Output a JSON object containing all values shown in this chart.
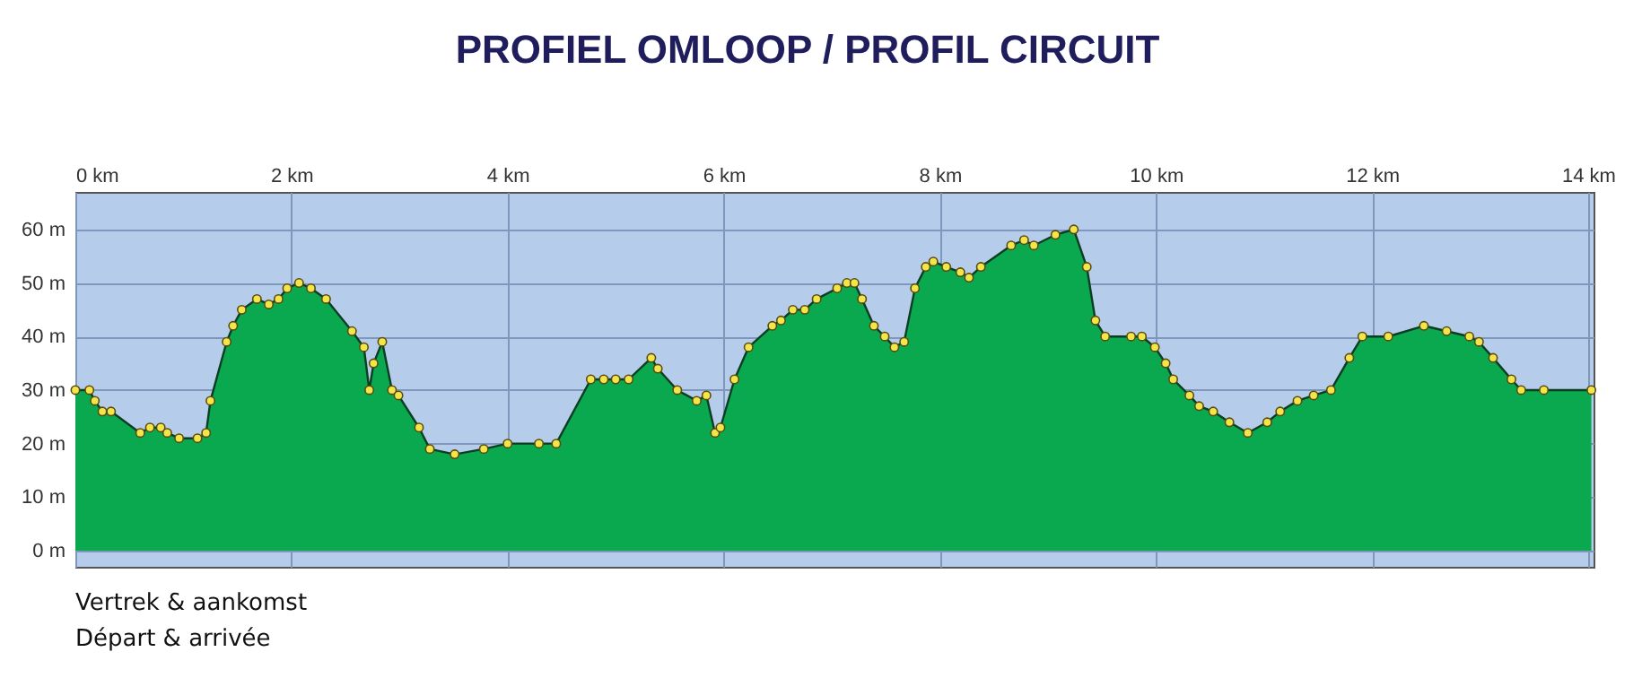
{
  "chart_data": {
    "type": "area",
    "title": "PROFIEL OMLOOP / PROFIL CIRCUIT",
    "annotations": [
      "Vertrek & aankomst",
      "Départ & arrivée"
    ],
    "x": [
      0,
      0.13,
      0.18,
      0.25,
      0.33,
      0.6,
      0.69,
      0.79,
      0.85,
      0.96,
      1.13,
      1.21,
      1.25,
      1.4,
      1.46,
      1.54,
      1.68,
      1.79,
      1.88,
      1.96,
      2.07,
      2.18,
      2.32,
      2.56,
      2.67,
      2.72,
      2.76,
      2.84,
      2.93,
      2.99,
      3.18,
      3.28,
      3.51,
      3.78,
      4.0,
      4.29,
      4.45,
      4.77,
      4.89,
      5.0,
      5.12,
      5.33,
      5.39,
      5.57,
      5.75,
      5.84,
      5.92,
      5.97,
      6.1,
      6.23,
      6.45,
      6.53,
      6.64,
      6.75,
      6.86,
      7.05,
      7.14,
      7.21,
      7.28,
      7.39,
      7.49,
      7.58,
      7.67,
      7.77,
      7.87,
      7.94,
      8.06,
      8.19,
      8.27,
      8.38,
      8.66,
      8.78,
      8.87,
      9.07,
      9.24,
      9.36,
      9.44,
      9.53,
      9.77,
      9.87,
      9.99,
      10.09,
      10.16,
      10.31,
      10.4,
      10.53,
      10.68,
      10.85,
      11.03,
      11.15,
      11.31,
      11.46,
      11.62,
      11.79,
      11.91,
      12.15,
      12.48,
      12.69,
      12.9,
      12.99,
      13.12,
      13.29,
      13.38,
      13.59,
      14.03
    ],
    "series": [
      {
        "color": "#0aa84f",
        "values": [
          30,
          30,
          28,
          26,
          26,
          22,
          23,
          23,
          22,
          21,
          21,
          22,
          28,
          39,
          42,
          45,
          47,
          46,
          47,
          49,
          50,
          49,
          47,
          41,
          38,
          30,
          35,
          39,
          30,
          29,
          23,
          19,
          18,
          19,
          20,
          20,
          20,
          32,
          32,
          32,
          32,
          36,
          34,
          30,
          28,
          29,
          22,
          23,
          32,
          38,
          42,
          43,
          45,
          45,
          47,
          49,
          50,
          50,
          47,
          42,
          40,
          38,
          39,
          49,
          53,
          54,
          53,
          52,
          51,
          53,
          57,
          58,
          57,
          59,
          60,
          53,
          43,
          40,
          40,
          40,
          38,
          35,
          32,
          29,
          27,
          26,
          24,
          22,
          24,
          26,
          28,
          29,
          30,
          36,
          40,
          40,
          42,
          41,
          40,
          39,
          36,
          32,
          30,
          30,
          30
        ]
      }
    ],
    "xlim": [
      0,
      14.05
    ],
    "ylim": [
      -3,
      67
    ],
    "xticks": [
      {
        "value": 0,
        "label": "0 km"
      },
      {
        "value": 2,
        "label": "2 km"
      },
      {
        "value": 4,
        "label": "4 km"
      },
      {
        "value": 6,
        "label": "6 km"
      },
      {
        "value": 8,
        "label": "8 km"
      },
      {
        "value": 10,
        "label": "10 km"
      },
      {
        "value": 12,
        "label": "12 km"
      },
      {
        "value": 14,
        "label": "14 km"
      }
    ],
    "yticks": [
      {
        "value": 0,
        "label": "0 m"
      },
      {
        "value": 10,
        "label": "10 m"
      },
      {
        "value": 20,
        "label": "20 m"
      },
      {
        "value": 30,
        "label": "30 m"
      },
      {
        "value": 40,
        "label": "40 m"
      },
      {
        "value": 50,
        "label": "50 m"
      },
      {
        "value": 60,
        "label": "60 m"
      }
    ],
    "grid": true,
    "marker": "circle"
  }
}
